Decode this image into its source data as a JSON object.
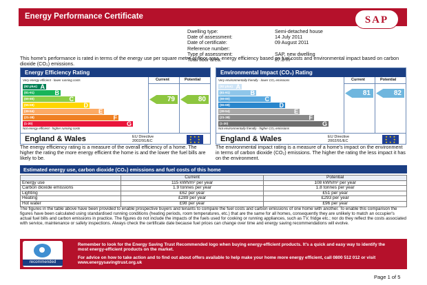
{
  "header": {
    "title": "Energy Performance Certificate",
    "logo_text": "SAP"
  },
  "details": [
    {
      "label": "Dwelling type:",
      "value": "Semi-detached house"
    },
    {
      "label": "Date of assessment:",
      "value": "14 July 2011"
    },
    {
      "label": "Date of certificate:",
      "value": "09 August 2011"
    },
    {
      "label": "Reference number:",
      "value": ""
    },
    {
      "label": "Type of assessment:",
      "value": "SAP, new dwelling"
    },
    {
      "label": "Total floor area:",
      "value": "87.8 m²"
    }
  ],
  "intro": "This home's performance is rated in terms of the energy use per square metre of floor area, energy efficiency based on fuel costs and environmental impact based on carbon dioxide (CO₂) emissions.",
  "efficiency": {
    "title": "Energy Efficiency Rating",
    "current_label": "Current",
    "potential_label": "Potential",
    "top_label": "Very energy efficient - lower running costs",
    "bottom_label": "Not energy efficient - higher running costs",
    "current": "79",
    "potential": "80",
    "current_value": 79,
    "potential_value": 80,
    "arrow_color": "#8dc63f",
    "bands": [
      {
        "range": "(92 plus)",
        "letter": "A",
        "color": "#008054"
      },
      {
        "range": "(81-91)",
        "letter": "B",
        "color": "#19b459"
      },
      {
        "range": "(69-80)",
        "letter": "C",
        "color": "#8dce46"
      },
      {
        "range": "(55-68)",
        "letter": "D",
        "color": "#ffd500"
      },
      {
        "range": "(39-54)",
        "letter": "E",
        "color": "#fcaa65"
      },
      {
        "range": "(21-38)",
        "letter": "F",
        "color": "#ef8023"
      },
      {
        "range": "(1-20)",
        "letter": "G",
        "color": "#e9153b"
      }
    ],
    "region": "England & Wales",
    "eu_line1": "EU Directive",
    "eu_line2": "2002/91/EC",
    "description": "The energy efficiency rating is a measure of the overall efficiency of a home. The higher the rating the more energy efficient the home is and the lower the fuel bills are likely to be."
  },
  "environment": {
    "title": "Environmental Impact (CO₂) Rating",
    "current_label": "Current",
    "potential_label": "Potential",
    "top_label": "Very environmentally friendly - lower CO₂ emissions",
    "bottom_label": "Not environmentally friendly - higher CO₂ emissions",
    "current": "81",
    "potential": "82",
    "current_value": 81,
    "potential_value": 82,
    "arrow_color": "#6fb6de",
    "bands": [
      {
        "range": "(92 plus)",
        "letter": "A",
        "color": "#cde3f5"
      },
      {
        "range": "(81-91)",
        "letter": "B",
        "color": "#8fc6ea"
      },
      {
        "range": "(69-80)",
        "letter": "C",
        "color": "#5aa9df"
      },
      {
        "range": "(55-68)",
        "letter": "D",
        "color": "#2a86cc"
      },
      {
        "range": "(39-54)",
        "letter": "E",
        "color": "#a8a8a8"
      },
      {
        "range": "(21-38)",
        "letter": "F",
        "color": "#8a8a8a"
      },
      {
        "range": "(1-20)",
        "letter": "G",
        "color": "#6d6d6d"
      }
    ],
    "region": "England & Wales",
    "eu_line1": "EU Directive",
    "eu_line2": "2002/91/EC",
    "description": "The environmental impact rating is a measure of a home's impact on the environment in terms of carbon dioxide (CO₂) emissions. The higher the rating the less impact it has on the environment."
  },
  "estimates": {
    "title": "Estimated energy use, carbon dioxide (CO₂) emissions and fuel costs of this home",
    "header": [
      "",
      "Current",
      "Potential"
    ],
    "rows": [
      [
        "Energy use",
        "115 kWh/m² per year",
        "108 kWh/m² per year"
      ],
      [
        "Carbon dioxide emissions",
        "1.9 tonnes per year",
        "1.8 tonnes per year"
      ],
      [
        "Lighting",
        "£62 per year",
        "£51 per year"
      ],
      [
        "Heating",
        "£289 per year",
        "£293 per year"
      ],
      [
        "Hot water",
        "£98 per year",
        "£96 per year"
      ]
    ]
  },
  "notes": "The figures in the table above have been provided to enable prospective buyers and tenants to compare the fuel costs and carbon emissions of one home with another. To enable this comparison the figures have been calculated using standardised running conditions (heating periods, room temperatures, etc.) that are the same for all homes, consequently they are unlikely to match an occupier's actual fuel bills and carbon emissions in practice. The figures do not include the impacts of the fuels used for cooking or running appliances, such as TV, fridge etc.; nor do they reflect the costs associated with service, maintenance or safety inspections. Always check the certificate date because fuel prices can change over time and energy saving recommendations will evolve.",
  "banner": {
    "logo_text": "recommended",
    "line1": "Remember to look for the Energy Saving Trust Recommended logo when buying energy-efficient products. It's a quick and easy way to identify the most energy-efficient products on the market.",
    "line2": "For advice on how to take action and to find out about offers available to help make your home more energy efficient, call 0800 512 012 or visit www.energysavingtrust.org.uk"
  },
  "page": "Page 1 of 5"
}
